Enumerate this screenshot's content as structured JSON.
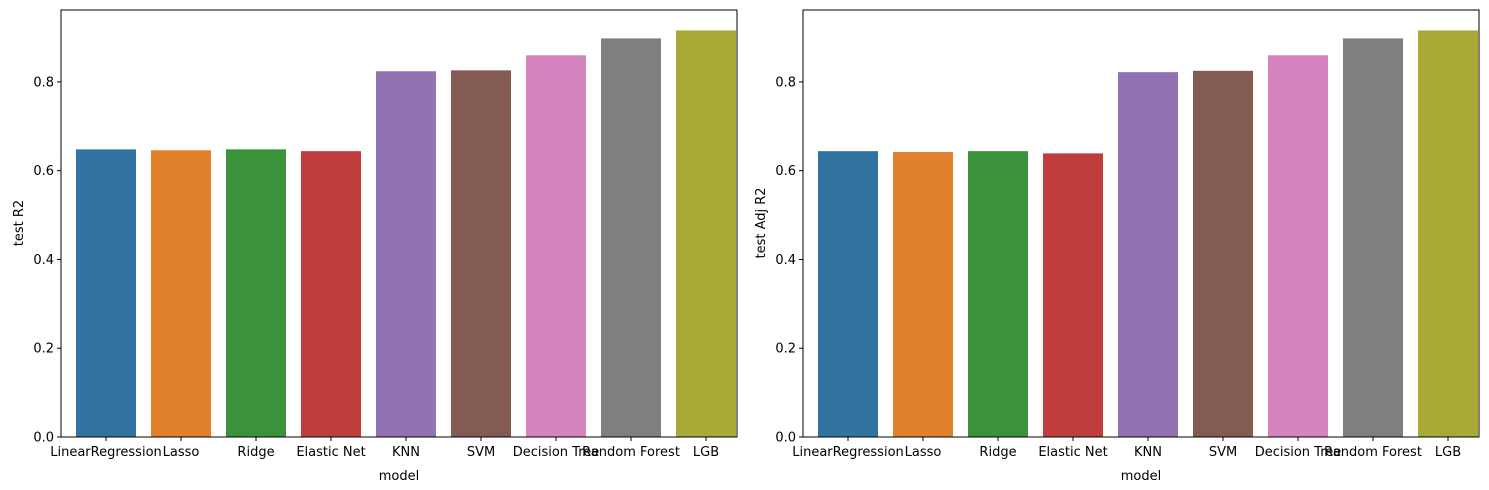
{
  "chart_data": [
    {
      "type": "bar",
      "xlabel": "model",
      "ylabel": "test R2",
      "ylim": [
        0,
        0.962
      ],
      "yticks": [
        0.0,
        0.2,
        0.4,
        0.6,
        0.8
      ],
      "ytick_labels": [
        "0.0",
        "0.2",
        "0.4",
        "0.6",
        "0.8"
      ],
      "grid": false,
      "categories": [
        "LinearRegression",
        "Lasso",
        "Ridge",
        "Elastic Net",
        "KNN",
        "SVM",
        "Decision Tree",
        "Random Forest",
        "LGB"
      ],
      "values": [
        0.648,
        0.646,
        0.648,
        0.644,
        0.824,
        0.826,
        0.86,
        0.898,
        0.916
      ],
      "colors": [
        "#3274a1",
        "#e1812c",
        "#3a923a",
        "#c03d3e",
        "#9372b2",
        "#845b53",
        "#d684bd",
        "#7f7f7f",
        "#a9aa35"
      ]
    },
    {
      "type": "bar",
      "xlabel": "model",
      "ylabel": "test Adj R2",
      "ylim": [
        0,
        0.962
      ],
      "yticks": [
        0.0,
        0.2,
        0.4,
        0.6,
        0.8
      ],
      "ytick_labels": [
        "0.0",
        "0.2",
        "0.4",
        "0.6",
        "0.8"
      ],
      "grid": false,
      "categories": [
        "LinearRegression",
        "Lasso",
        "Ridge",
        "Elastic Net",
        "KNN",
        "SVM",
        "Decision Tree",
        "Random Forest",
        "LGB"
      ],
      "values": [
        0.644,
        0.642,
        0.644,
        0.639,
        0.822,
        0.825,
        0.86,
        0.898,
        0.916
      ],
      "colors": [
        "#3274a1",
        "#e1812c",
        "#3a923a",
        "#c03d3e",
        "#9372b2",
        "#845b53",
        "#d684bd",
        "#7f7f7f",
        "#a9aa35"
      ]
    }
  ]
}
